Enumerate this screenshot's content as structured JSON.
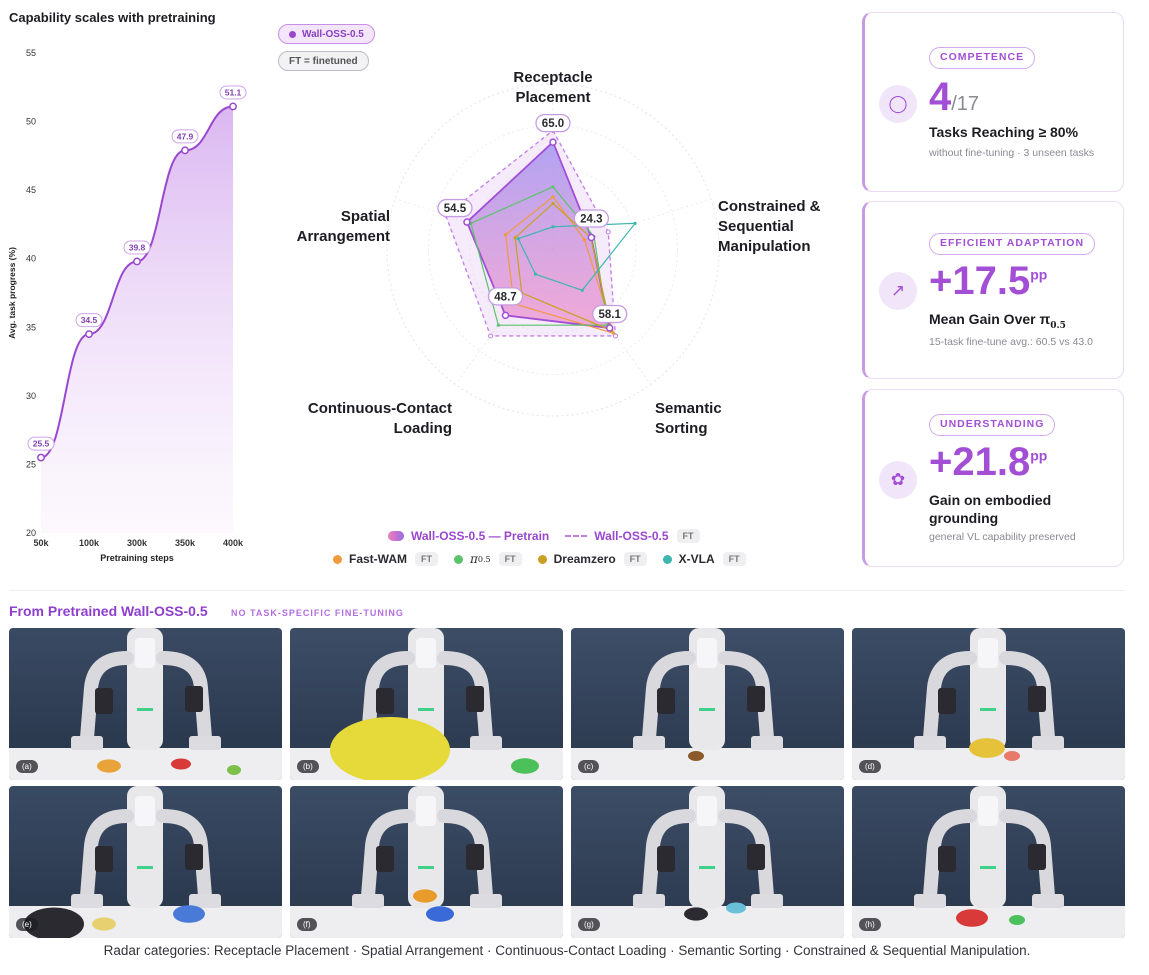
{
  "left_chart_title": "Capability scales with pretraining",
  "pills": {
    "wall": "Wall-OSS-0.5",
    "ft": "FT = finetuned"
  },
  "chart_data": [
    {
      "type": "area",
      "title": "Capability scales with pretraining",
      "xlabel": "Pretraining steps",
      "ylabel": "Avg. task progress (%)",
      "x": [
        "50k",
        "100k",
        "300k",
        "350k",
        "400k"
      ],
      "series": [
        {
          "values": [
            25.5,
            34.5,
            39.8,
            47.9,
            51.1
          ]
        }
      ],
      "data_labels": [
        "25.5",
        "34.5",
        "39.8",
        "47.9",
        "51.1"
      ],
      "ylim": [
        20,
        55
      ],
      "yticks": [
        "55",
        "50",
        "45",
        "40",
        "35",
        "30",
        "25",
        "20"
      ],
      "color": "#9a47d0",
      "grid": false
    },
    {
      "type": "radar",
      "axes": [
        "Receptacle Placement",
        "Constrained & Sequential Manipulation",
        "Semantic Sorting",
        "Continuous-Contact Loading",
        "Spatial Arrangement"
      ],
      "axis_label_lines": [
        [
          "Receptacle",
          "Placement"
        ],
        [
          "Constrained &",
          "Sequential",
          "Manipulation"
        ],
        [
          "Semantic",
          "Sorting"
        ],
        [
          "Continuous-Contact",
          "Loading"
        ],
        [
          "Spatial",
          "Arrangement"
        ]
      ],
      "rmax": 100,
      "series": [
        {
          "name": "Wall-OSS-0.5 — Pretrain",
          "values": [
            65.0,
            24.3,
            58.1,
            48.7,
            54.5
          ],
          "labels": [
            "65.0",
            "24.3",
            "58.1",
            "48.7",
            "54.5"
          ],
          "color": "#a24fd6"
        },
        {
          "name": "Wall-OSS-0.5",
          "ft": true,
          "values": [
            72,
            35,
            64,
            64,
            68
          ],
          "color": "#c27ee8",
          "dashed": true
        },
        {
          "name": "Fast-WAM",
          "ft": true,
          "values": [
            32,
            20,
            62,
            40,
            30
          ],
          "color": "#f09a3e"
        },
        {
          "name": "π0.5",
          "ft": true,
          "values": [
            38,
            26,
            56,
            56,
            52
          ],
          "color": "#5cc26b"
        },
        {
          "name": "Dreamzero",
          "ft": true,
          "values": [
            28,
            24,
            60,
            32,
            24
          ],
          "color": "#c8a023"
        },
        {
          "name": "X-VLA",
          "ft": true,
          "values": [
            14,
            52,
            30,
            18,
            22
          ],
          "color": "#3db6b0"
        }
      ]
    }
  ],
  "legend": {
    "row1": [
      {
        "label": "Wall-OSS-0.5 — Pretrain"
      },
      {
        "label": "Wall-OSS-0.5",
        "chip": "FT"
      }
    ],
    "row2": [
      {
        "label": "Fast-WAM",
        "chip": "FT",
        "color": "#f09a3e"
      },
      {
        "label": "π",
        "sub": "0.5",
        "chip": "FT",
        "color": "#5cc26b"
      },
      {
        "label": "Dreamzero",
        "chip": "FT",
        "color": "#c8a023"
      },
      {
        "label": "X-VLA",
        "chip": "FT",
        "color": "#3db6b0"
      }
    ]
  },
  "cards": [
    {
      "tag": "COMPETENCE",
      "icon": "lightbulb-icon",
      "big": "4",
      "big_suffix": "/17",
      "head": "Tasks Reaching ≥ 80%",
      "sub": "without fine-tuning · 3 unseen tasks"
    },
    {
      "tag": "EFFICIENT ADAPTATION",
      "icon": "trend-up-icon",
      "big": "+17.5",
      "big_suffix": "pp",
      "head": "Mean Gain Over π",
      "head_sub": "0.5",
      "sub": "15-task fine-tune avg.: 60.5 vs 43.0"
    },
    {
      "tag": "UNDERSTANDING",
      "icon": "brain-icon",
      "big": "+21.8",
      "big_suffix": "pp",
      "head": "Gain on embodied grounding",
      "sub": "general VL capability preserved"
    }
  ],
  "section": {
    "title": "From Pretrained Wall-OSS-0.5",
    "tag": "NO TASK-SPECIFIC FINE-TUNING"
  },
  "photos": [
    "(a)",
    "(b)",
    "(c)",
    "(d)",
    "(e)",
    "(f)",
    "(g)",
    "(h)"
  ],
  "caption": "Radar categories: Receptacle Placement · Spatial Arrangement · Continuous-Contact Loading · Semantic Sorting · Constrained & Sequential Manipulation."
}
